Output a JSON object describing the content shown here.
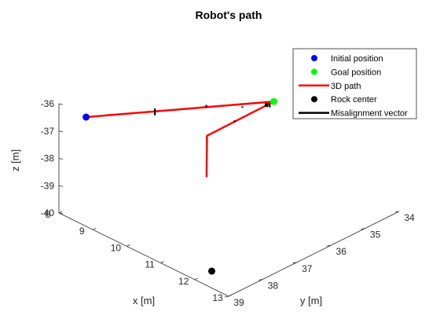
{
  "chart_data": {
    "type": "line",
    "projection": "3d",
    "title": "Robot's path",
    "xlabel": "x [m]",
    "ylabel": "y [m]",
    "zlabel": "z [m]",
    "xlim": [
      8,
      13
    ],
    "ylim": [
      34,
      39
    ],
    "zlim": [
      -40,
      -36
    ],
    "xticks": [
      "8",
      "9",
      "10",
      "11",
      "12",
      "13"
    ],
    "yticks": [
      "34",
      "35",
      "36",
      "37",
      "38",
      "39"
    ],
    "zticks": [
      "-40",
      "-39",
      "-38",
      "-37",
      "-36"
    ],
    "legend_position": "top-right",
    "legend": [
      {
        "label": "Initial position",
        "kind": "marker",
        "color": "#0000ff"
      },
      {
        "label": "Goal position",
        "kind": "marker",
        "color": "#00ff00"
      },
      {
        "label": "3D path",
        "kind": "line",
        "color": "#ff0000"
      },
      {
        "label": "Rock center",
        "kind": "marker",
        "color": "#000000"
      },
      {
        "label": "Misalignment vector",
        "kind": "line",
        "color": "#000000"
      }
    ],
    "series": [
      {
        "name": "Initial position",
        "kind": "marker",
        "color": "#0000ff",
        "points": [
          [
            8.8,
            39.0,
            -36.0
          ]
        ]
      },
      {
        "name": "Goal position",
        "kind": "marker",
        "color": "#00ff00",
        "points": [
          [
            9.82,
            34.51,
            -37.6
          ]
        ]
      },
      {
        "name": "3D path",
        "kind": "line",
        "color": "#ff0000",
        "points": [
          [
            8.8,
            39.0,
            -36.0
          ],
          [
            9.82,
            34.51,
            -37.6
          ],
          [
            9.85,
            36.5,
            -37.6
          ],
          [
            9.94,
            36.6,
            -38.7
          ],
          [
            9.94,
            36.6,
            -39.0
          ]
        ]
      },
      {
        "name": "Rock center",
        "kind": "marker",
        "color": "#000000",
        "points": [
          [
            12.0,
            38.5,
            -40.0
          ]
        ]
      },
      {
        "name": "Misalignment vector",
        "kind": "segments",
        "color": "#000000",
        "segments": [
          [
            [
              9.28,
              37.46,
              -36.35
            ],
            [
              9.28,
              37.46,
              -36.6
            ]
          ],
          [
            [
              9.57,
              36.24,
              -36.8
            ],
            [
              9.57,
              36.24,
              -36.9
            ]
          ],
          [
            [
              9.77,
              35.38,
              -37.27
            ],
            [
              9.77,
              35.38,
              -37.32
            ]
          ],
          [
            [
              9.81,
              34.74,
              -37.5
            ],
            [
              9.81,
              34.74,
              -37.65
            ]
          ],
          [
            [
              9.81,
              34.69,
              -37.55
            ],
            [
              9.81,
              34.69,
              -37.7
            ]
          ],
          [
            [
              9.81,
              34.62,
              -37.62
            ],
            [
              9.81,
              34.62,
              -37.75
            ]
          ],
          [
            [
              9.84,
              35.68,
              -37.55
            ],
            [
              9.84,
              35.68,
              -37.62
            ]
          ]
        ]
      }
    ]
  }
}
